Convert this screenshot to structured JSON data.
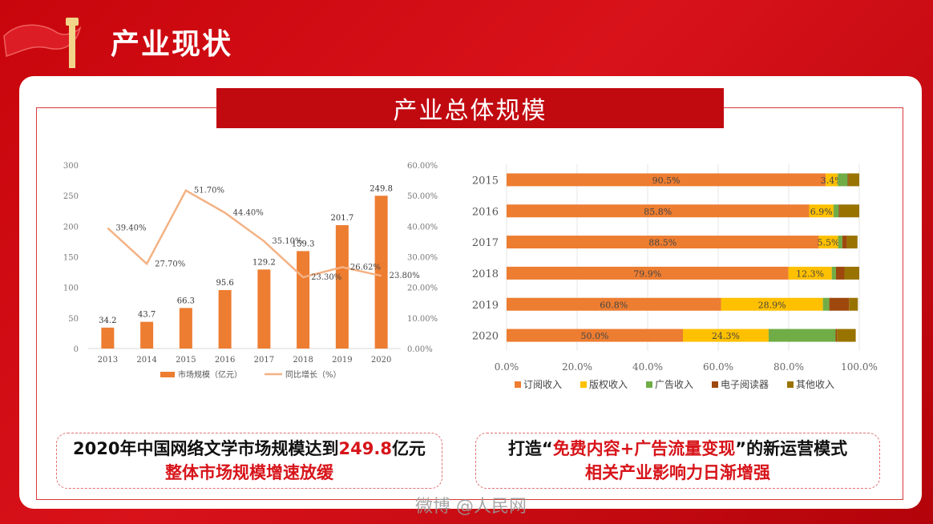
{
  "header": {
    "title": "产业现状"
  },
  "section": {
    "title": "产业总体规模"
  },
  "colors": {
    "bar": "#ed7d31",
    "line": "#f4b183",
    "subscription": "#ed7d31",
    "copyright": "#ffc000",
    "ads": "#70ad47",
    "ereader": "#9e480e",
    "other": "#997300",
    "accent_red": "#d7141a"
  },
  "chart_data": [
    {
      "type": "bar",
      "categories": [
        "2013",
        "2014",
        "2015",
        "2016",
        "2017",
        "2018",
        "2019",
        "2020"
      ],
      "series": [
        {
          "name": "市场规模（亿元）",
          "values": [
            34.2,
            43.7,
            66.3,
            95.6,
            129.2,
            159.3,
            201.7,
            249.8
          ],
          "labels": [
            "34.2",
            "43.7",
            "66.3",
            "95.6",
            "129.2",
            "159.3",
            "201.7",
            "249.8"
          ]
        },
        {
          "name": "同比增长（%）",
          "type": "line",
          "axis": "right",
          "values": [
            39.4,
            27.7,
            51.7,
            44.4,
            35.1,
            23.3,
            26.62,
            23.8
          ],
          "labels": [
            "39.40%",
            "27.70%",
            "51.70%",
            "44.40%",
            "35.10%",
            "23.30%",
            "26.62%",
            "23.80%"
          ]
        }
      ],
      "ylim": [
        0,
        300
      ],
      "yticks": [
        "0",
        "50",
        "100",
        "150",
        "200",
        "250",
        "300"
      ],
      "y2lim": [
        0,
        60
      ],
      "y2ticks": [
        "0.00%",
        "10.00%",
        "20.00%",
        "30.00%",
        "40.00%",
        "50.00%",
        "60.00%"
      ],
      "legend_position": "bottom"
    },
    {
      "type": "bar",
      "orientation": "horizontal-stacked-100",
      "categories": [
        "2015",
        "2016",
        "2017",
        "2018",
        "2019",
        "2020"
      ],
      "series": [
        {
          "name": "订阅收入",
          "values": [
            90.5,
            85.8,
            88.5,
            79.9,
            60.8,
            50.0
          ],
          "labels": [
            "90.5%",
            "85.8%",
            "88.5%",
            "79.9%",
            "60.8%",
            "50.0%"
          ]
        },
        {
          "name": "版权收入",
          "values": [
            3.4,
            6.9,
            5.5,
            12.3,
            28.9,
            24.3
          ],
          "labels": [
            "3.4%",
            "6.9%",
            "5.5%",
            "12.3%",
            "28.9%",
            "24.3%"
          ]
        },
        {
          "name": "广告收入",
          "values": [
            2.8,
            1.5,
            1.2,
            1.2,
            1.8,
            19.0
          ]
        },
        {
          "name": "电子阅读器",
          "values": [
            0.3,
            0.3,
            1.3,
            2.4,
            5.6,
            0.4
          ]
        },
        {
          "name": "其他收入",
          "values": [
            3.0,
            5.5,
            3.0,
            4.2,
            2.5,
            5.3
          ]
        }
      ],
      "xlim": [
        0,
        100
      ],
      "xticks": [
        "0.0%",
        "20.0%",
        "40.0%",
        "60.0%",
        "80.0%",
        "100.0%"
      ],
      "legend_position": "bottom"
    }
  ],
  "callouts": {
    "left": {
      "line1_a": "2020年中国网络文学市场规模达到",
      "line1_b": "249.8",
      "line1_c": "亿元",
      "line2": "整体市场规模增速放缓"
    },
    "right": {
      "line1_a": "打造“",
      "line1_b": "免费内容+广告流量变现",
      "line1_c": "”的新运营模式",
      "line2": "相关产业影响力日渐增强"
    }
  },
  "watermark": "微博 @人民网"
}
